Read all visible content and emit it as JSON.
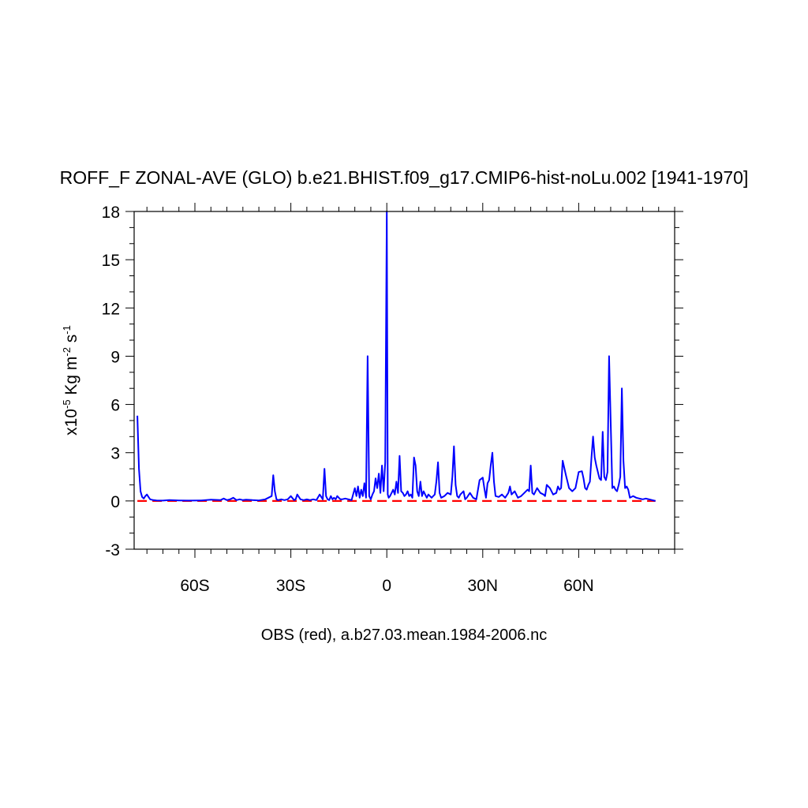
{
  "chart_data": {
    "type": "line",
    "title": "ROFF_F ZONAL-AVE (GLO) b.e21.BHIST.f09_g17.CMIP6-hist-noLu.002 [1941-1970]",
    "ylabel": {
      "prefix": "x10",
      "exp1": "-5",
      "mid": " Kg m",
      "exp2": "-2",
      "mid2": " s",
      "exp3": "-1"
    },
    "xlabel": "OBS (red), a.b27.03.mean.1984-2006.nc",
    "xlim": [
      -79,
      90
    ],
    "ylim": [
      -3,
      18
    ],
    "yticks": [
      {
        "v": -3,
        "label": "-3"
      },
      {
        "v": 0,
        "label": "0"
      },
      {
        "v": 3,
        "label": "3"
      },
      {
        "v": 6,
        "label": "6"
      },
      {
        "v": 9,
        "label": "9"
      },
      {
        "v": 12,
        "label": "12"
      },
      {
        "v": 15,
        "label": "15"
      },
      {
        "v": 18,
        "label": "18"
      }
    ],
    "xticks": [
      {
        "v": -60,
        "label": "60S"
      },
      {
        "v": -30,
        "label": "30S"
      },
      {
        "v": 0,
        "label": "0"
      },
      {
        "v": 30,
        "label": "30N"
      },
      {
        "v": 60,
        "label": "60N"
      }
    ],
    "series": [
      {
        "color": "#0000ff",
        "style": "solid",
        "x": [
          -78.0,
          -77.5,
          -77.0,
          -76.5,
          -76.0,
          -75.5,
          -75.0,
          -74.5,
          -74.0,
          -73.0,
          -72.0,
          -70.0,
          -68.0,
          -65.0,
          -62.0,
          -58.0,
          -55.0,
          -52.0,
          -51.0,
          -50.0,
          -49.0,
          -48.0,
          -47.0,
          -46.0,
          -45.0,
          -44.0,
          -42.0,
          -40.0,
          -38.0,
          -36.0,
          -35.5,
          -35.0,
          -34.5,
          -34.0,
          -33.0,
          -32.0,
          -31.0,
          -30.0,
          -29.0,
          -28.5,
          -28.0,
          -27.0,
          -26.0,
          -25.0,
          -24.0,
          -23.0,
          -22.0,
          -21.0,
          -20.0,
          -19.5,
          -19.0,
          -18.5,
          -18.0,
          -17.5,
          -17.0,
          -16.5,
          -16.0,
          -15.5,
          -15.0,
          -14.5,
          -14.0,
          -13.0,
          -12.0,
          -11.0,
          -10.0,
          -9.5,
          -9.0,
          -8.5,
          -8.0,
          -7.5,
          -7.0,
          -6.5,
          -6.0,
          -5.5,
          -5.0,
          -4.5,
          -4.0,
          -3.5,
          -3.0,
          -2.5,
          -2.0,
          -1.5,
          -1.0,
          -0.5,
          0.0,
          0.3,
          0.6,
          1.0,
          1.5,
          2.0,
          2.5,
          3.0,
          3.5,
          4.0,
          4.5,
          5.0,
          5.5,
          6.0,
          6.5,
          7.0,
          7.5,
          8.0,
          8.5,
          9.0,
          9.5,
          10.0,
          10.5,
          11.0,
          11.5,
          12.0,
          12.5,
          13.0,
          13.5,
          14.0,
          14.5,
          15.0,
          15.5,
          16.0,
          16.5,
          17.0,
          18.0,
          19.0,
          20.0,
          20.5,
          21.0,
          21.5,
          22.0,
          22.5,
          23.0,
          24.0,
          24.5,
          25.0,
          26.0,
          27.0,
          28.0,
          29.0,
          30.0,
          30.5,
          31.0,
          31.5,
          32.0,
          32.5,
          33.0,
          33.5,
          34.0,
          35.0,
          36.0,
          37.0,
          38.0,
          38.5,
          39.0,
          40.0,
          41.0,
          42.0,
          43.0,
          44.0,
          44.5,
          45.0,
          45.5,
          46.0,
          47.0,
          48.0,
          49.0,
          49.5,
          50.0,
          51.0,
          52.0,
          53.0,
          53.5,
          54.0,
          54.5,
          55.0,
          56.0,
          57.0,
          58.0,
          59.0,
          60.0,
          61.0,
          61.5,
          62.0,
          62.5,
          63.0,
          63.5,
          64.0,
          64.5,
          65.0,
          65.5,
          66.0,
          66.5,
          67.0,
          67.5,
          68.0,
          68.5,
          69.0,
          69.5,
          70.0,
          70.5,
          71.0,
          71.5,
          72.0,
          72.5,
          73.0,
          73.5,
          74.0,
          74.5,
          75.0,
          75.5,
          76.0,
          77.0,
          78.0,
          79.0,
          80.0,
          81.0,
          82.0,
          83.0,
          84.0
        ],
        "y": [
          5.3,
          2.0,
          0.6,
          0.25,
          0.15,
          0.3,
          0.4,
          0.25,
          0.1,
          0.05,
          0.03,
          0.02,
          0.05,
          0.03,
          0.02,
          0.03,
          0.08,
          0.05,
          0.15,
          0.05,
          0.1,
          0.2,
          0.05,
          0.1,
          0.05,
          0.08,
          0.05,
          0.03,
          0.1,
          0.3,
          1.6,
          0.6,
          0.1,
          0.05,
          0.1,
          0.05,
          0.1,
          0.3,
          0.05,
          0.1,
          0.4,
          0.1,
          0.05,
          0.1,
          0.05,
          0.1,
          0.05,
          0.4,
          0.1,
          2.0,
          0.3,
          0.1,
          0.05,
          0.3,
          0.1,
          0.2,
          0.1,
          0.3,
          0.2,
          0.1,
          0.1,
          0.15,
          0.1,
          0.05,
          0.8,
          0.3,
          0.9,
          0.2,
          0.7,
          0.3,
          1.1,
          0.2,
          9.0,
          0.3,
          0.1,
          0.4,
          0.6,
          1.4,
          0.8,
          1.7,
          0.5,
          2.2,
          0.6,
          2.4,
          18.0,
          0.4,
          0.2,
          0.3,
          0.5,
          0.7,
          0.4,
          1.2,
          0.5,
          2.8,
          0.6,
          0.5,
          0.3,
          0.4,
          0.6,
          0.3,
          0.4,
          0.2,
          2.7,
          2.2,
          0.6,
          0.3,
          1.2,
          0.3,
          0.6,
          0.4,
          0.2,
          0.4,
          0.3,
          0.2,
          0.3,
          0.4,
          1.2,
          2.4,
          0.5,
          0.2,
          0.3,
          0.5,
          0.4,
          1.5,
          3.4,
          1.0,
          0.3,
          0.2,
          0.4,
          0.6,
          0.1,
          0.2,
          0.5,
          0.2,
          0.1,
          1.3,
          1.45,
          0.8,
          0.2,
          1.1,
          1.3,
          2.2,
          3.0,
          1.2,
          0.3,
          0.25,
          0.4,
          0.2,
          0.5,
          0.9,
          0.4,
          0.6,
          0.2,
          0.3,
          0.5,
          0.7,
          0.6,
          2.2,
          0.5,
          0.4,
          0.8,
          0.5,
          0.4,
          0.3,
          1.0,
          0.8,
          0.4,
          0.5,
          0.9,
          0.7,
          0.8,
          2.5,
          1.6,
          0.8,
          0.6,
          0.8,
          1.8,
          1.85,
          1.4,
          0.8,
          0.7,
          1.0,
          1.2,
          2.7,
          4.0,
          2.7,
          2.2,
          1.8,
          1.4,
          1.3,
          4.3,
          1.5,
          1.3,
          1.8,
          9.0,
          5.0,
          0.8,
          0.9,
          0.7,
          0.6,
          1.0,
          1.5,
          7.0,
          2.5,
          0.8,
          0.9,
          0.7,
          0.2,
          0.3,
          0.2,
          0.15,
          0.1,
          0.15,
          0.1,
          0.05,
          0.0
        ]
      },
      {
        "color": "#ff0000",
        "style": "dashed",
        "x": [
          -78.0,
          84.0
        ],
        "y": [
          0.0,
          0.0
        ]
      }
    ],
    "grid": false
  }
}
